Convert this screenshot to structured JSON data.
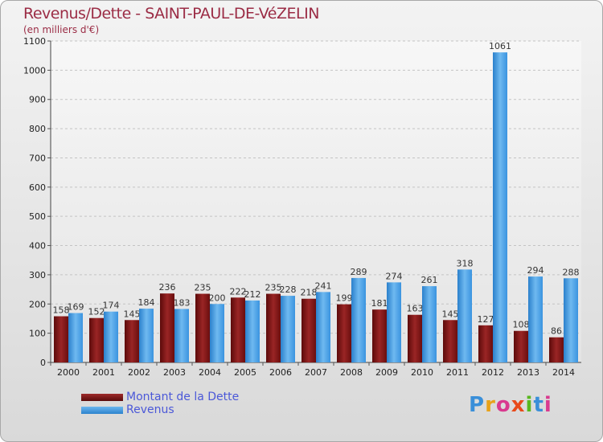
{
  "title": "Revenus/Dette - SAINT-PAUL-DE-VéZELIN",
  "subtitle": "(en milliers d'€)",
  "brand": "Proxiti",
  "chart_data": {
    "type": "bar",
    "title": "Revenus/Dette - SAINT-PAUL-DE-VéZELIN",
    "ylabel": "(en milliers d'€)",
    "ylim": [
      0,
      1100
    ],
    "yticks": [
      0,
      100,
      200,
      300,
      400,
      500,
      600,
      700,
      800,
      900,
      1000,
      1100
    ],
    "grid": true,
    "legend_position": "bottom-left",
    "categories": [
      "2000",
      "2001",
      "2002",
      "2003",
      "2004",
      "2005",
      "2006",
      "2007",
      "2008",
      "2009",
      "2010",
      "2011",
      "2012",
      "2013",
      "2014"
    ],
    "series": [
      {
        "name": "Montant de la Dette",
        "color": "#7a1111",
        "values": [
          158,
          152,
          145,
          236,
          235,
          222,
          235,
          218,
          199,
          181,
          163,
          145,
          127,
          108,
          86
        ]
      },
      {
        "name": "Revenus",
        "color": "#3d9be3",
        "values": [
          169,
          174,
          184,
          183,
          200,
          212,
          228,
          241,
          289,
          274,
          261,
          318,
          1061,
          294,
          288
        ]
      }
    ]
  }
}
